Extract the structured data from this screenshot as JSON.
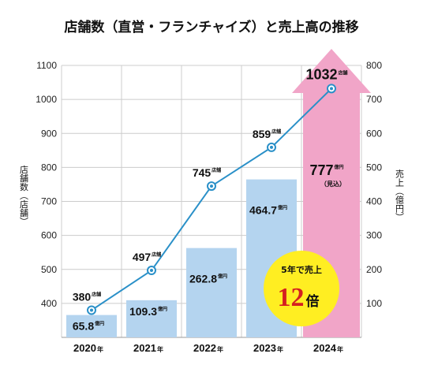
{
  "title": "店舗数（直営・フランチャイズ）と売上高の推移",
  "colors": {
    "bar": "#b4d4ef",
    "arrow": "#f1a5c8",
    "line": "#2a90c8",
    "grid": "#cccccc",
    "badge": "#ffee22"
  },
  "chart_data": {
    "type": "bar+line",
    "categories": [
      "2020",
      "2021",
      "2022",
      "2023",
      "2024"
    ],
    "year_suffix": "年",
    "left_axis": {
      "label": "店舗数（店舗）",
      "min": 300,
      "max": 1100,
      "ticks": [
        400,
        500,
        600,
        700,
        800,
        900,
        1000,
        1100
      ]
    },
    "right_axis": {
      "label": "売上（億円）",
      "min": 0,
      "max": 800,
      "ticks": [
        100,
        200,
        300,
        400,
        500,
        600,
        700,
        800
      ]
    },
    "sales": {
      "values": [
        65.8,
        109.3,
        262.8,
        464.7,
        777
      ],
      "labels": [
        "65.8",
        "109.3",
        "262.8",
        "464.7",
        "777"
      ],
      "unit": "億円",
      "forecast_note": "（見込）"
    },
    "stores": {
      "values": [
        380,
        497,
        745,
        859,
        1032
      ],
      "labels": [
        "380",
        "497",
        "745",
        "859",
        "1032"
      ],
      "unit": "店舗"
    },
    "badge": {
      "line1": "5年で売上",
      "number": "12",
      "unit": "倍"
    },
    "grid": true
  }
}
